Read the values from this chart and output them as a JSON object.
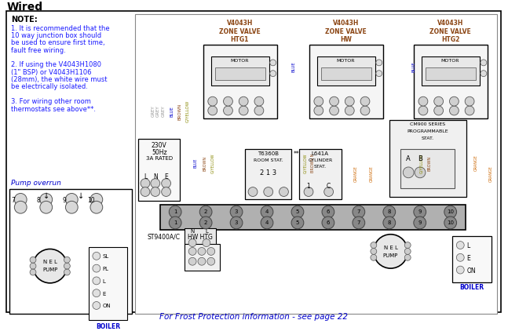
{
  "title": "Wired",
  "bg_color": "#ffffff",
  "border_color": "#000000",
  "note_text": "NOTE:",
  "note_lines": [
    "1. It is recommended that the",
    "10 way junction box should",
    "be used to ensure first time,",
    "fault free wiring.",
    "",
    "2. If using the V4043H1080",
    "(1\" BSP) or V4043H1106",
    "(28mm), the white wire must",
    "be electrically isolated.",
    "",
    "3. For wiring other room",
    "thermostats see above**."
  ],
  "pump_overrun_label": "Pump overrun",
  "footer_text": "For Frost Protection information - see page 22",
  "wire_colors": {
    "grey": "#909090",
    "blue": "#0000cc",
    "brown": "#8B4513",
    "gyellow": "#888800",
    "orange": "#cc6600",
    "black": "#000000",
    "white": "#ffffff",
    "red": "#cc0000"
  },
  "junction_box_color": "#c0c0c0",
  "component_bg": "#f0f0f0"
}
